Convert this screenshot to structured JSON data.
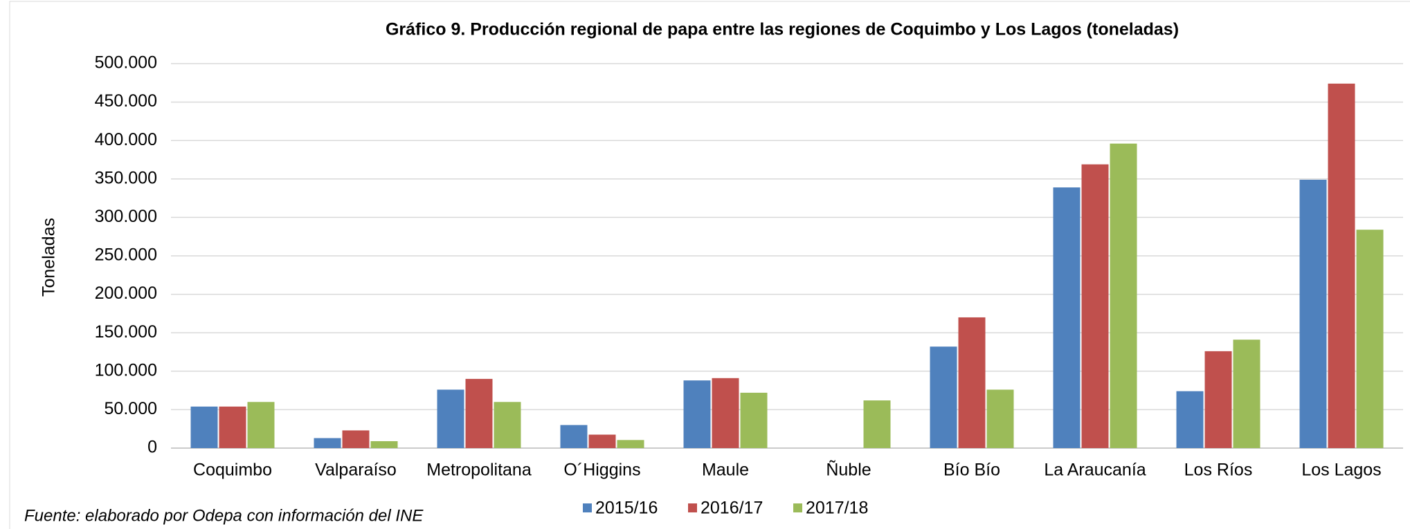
{
  "chart_data": {
    "type": "bar",
    "title": "Gráfico 9. Producción regional de papa entre las regiones de Coquimbo y Los Lagos (toneladas)",
    "y_label": "Toneladas",
    "source": "Fuente: elaborado por Odepa con información del INE",
    "categories": [
      "Coquimbo",
      "Valparaíso",
      "Metropolitana",
      "O´Higgins",
      "Maule",
      "Ñuble",
      "Bío Bío",
      "La Araucanía",
      "Los Ríos",
      "Los Lagos"
    ],
    "series": [
      {
        "name": "2015/16",
        "color": "#4f81bd",
        "values": [
          54000,
          13000,
          76000,
          30000,
          88000,
          null,
          132000,
          339000,
          74000,
          349000
        ]
      },
      {
        "name": "2016/17",
        "color": "#c0504d",
        "values": [
          54000,
          23000,
          90000,
          17500,
          91000,
          null,
          170000,
          369000,
          126000,
          474000
        ]
      },
      {
        "name": "2017/18",
        "color": "#9bbb59",
        "values": [
          60000,
          9000,
          60000,
          10500,
          72000,
          62000,
          76000,
          396000,
          141000,
          284000
        ]
      }
    ],
    "ylim": [
      0,
      500000
    ],
    "yticks": [
      0,
      {
        "value": 50000,
        "label": "50.000"
      },
      {
        "value": 100000,
        "label": "100.000"
      },
      {
        "value": 150000,
        "label": "150.000"
      },
      {
        "value": 200000,
        "label": "200.000"
      },
      {
        "value": 250000,
        "label": "250.000"
      },
      {
        "value": 300000,
        "label": "300.000"
      },
      {
        "value": 350000,
        "label": "350.000"
      },
      {
        "value": 400000,
        "label": "400.000"
      },
      {
        "value": 450000,
        "label": "450.000"
      },
      {
        "value": 500000,
        "label": "500.000"
      }
    ],
    "grid": true,
    "legend": "bottom"
  }
}
